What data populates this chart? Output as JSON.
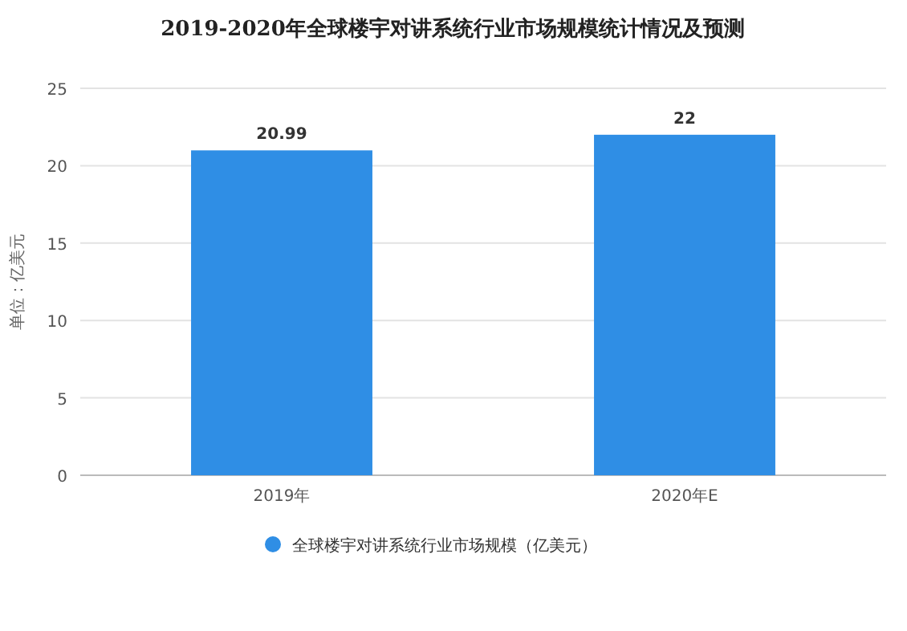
{
  "chart_data": {
    "type": "bar",
    "title": "2019-2020年全球楼宇对讲系统行业市场规模统计情况及预测",
    "ylabel": "单位：亿美元",
    "categories": [
      "2019年",
      "2020年E"
    ],
    "series": [
      {
        "name": "全球楼宇对讲系统行业市场规模（亿美元）",
        "color": "#2f8ee5",
        "values": [
          20.99,
          22
        ]
      }
    ],
    "ylim": [
      0,
      25
    ],
    "yticks": [
      0,
      5,
      10,
      15,
      20,
      25
    ],
    "grid": "y",
    "legend": "bottom",
    "data_labels": true
  }
}
